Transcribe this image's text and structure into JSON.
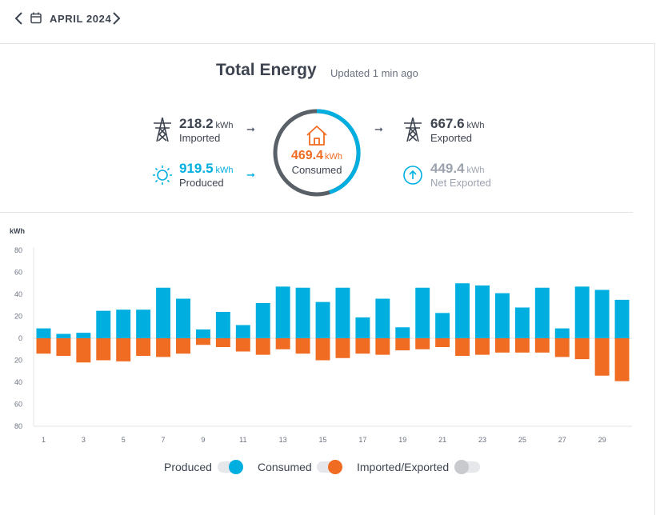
{
  "nav": {
    "month": "APRIL 2024",
    "prev_icon": "chevron-left-icon",
    "next_icon": "chevron-right-icon",
    "calendar_icon": "calendar-icon"
  },
  "header": {
    "title": "Total Energy",
    "updated": "Updated 1 min ago"
  },
  "stats": {
    "imported": {
      "value": "218.2",
      "unit": "kWh",
      "label": "Imported"
    },
    "produced": {
      "value": "919.5",
      "unit": "kWh",
      "label": "Produced"
    },
    "consumed": {
      "value": "469.4",
      "unit": "kWh",
      "label": "Consumed"
    },
    "exported": {
      "value": "667.6",
      "unit": "kWh",
      "label": "Exported"
    },
    "net_exported": {
      "value": "449.4",
      "unit": "kWh",
      "label": "Net Exported"
    }
  },
  "legend": {
    "produced": "Produced",
    "consumed": "Consumed",
    "imported_exported": "Imported/Exported"
  },
  "colors": {
    "produced": "#00afe0",
    "consumed": "#ef6c22",
    "text": "#3d4450",
    "grey": "#9ca3af"
  },
  "chart_data": {
    "type": "bar",
    "ylabel": "kWh",
    "ylim": [
      -80,
      80
    ],
    "y_ticks": [
      80,
      60,
      40,
      20,
      0,
      20,
      40,
      60,
      80
    ],
    "x_ticks": [
      "1",
      "3",
      "5",
      "7",
      "9",
      "11",
      "13",
      "15",
      "17",
      "19",
      "21",
      "23",
      "25",
      "27",
      "29"
    ],
    "categories": [
      1,
      2,
      3,
      4,
      5,
      6,
      7,
      8,
      9,
      10,
      11,
      12,
      13,
      14,
      15,
      16,
      17,
      18,
      19,
      20,
      21,
      22,
      23,
      24,
      25,
      26,
      27,
      28,
      29,
      30
    ],
    "series": [
      {
        "name": "Produced",
        "values": [
          9,
          4,
          5,
          25,
          26,
          26,
          46,
          36,
          8,
          24,
          12,
          32,
          47,
          46,
          33,
          46,
          19,
          36,
          10,
          46,
          23,
          50,
          48,
          41,
          28,
          46,
          9,
          47,
          44,
          35
        ]
      },
      {
        "name": "Consumed",
        "values": [
          -14,
          -16,
          -22,
          -20,
          -21,
          -16,
          -17,
          -14,
          -6,
          -8,
          -12,
          -15,
          -10,
          -14,
          -20,
          -18,
          -14,
          -15,
          -11,
          -10,
          -8,
          -16,
          -15,
          -13,
          -13,
          -13,
          -17,
          -19,
          -34,
          -39
        ]
      }
    ]
  }
}
